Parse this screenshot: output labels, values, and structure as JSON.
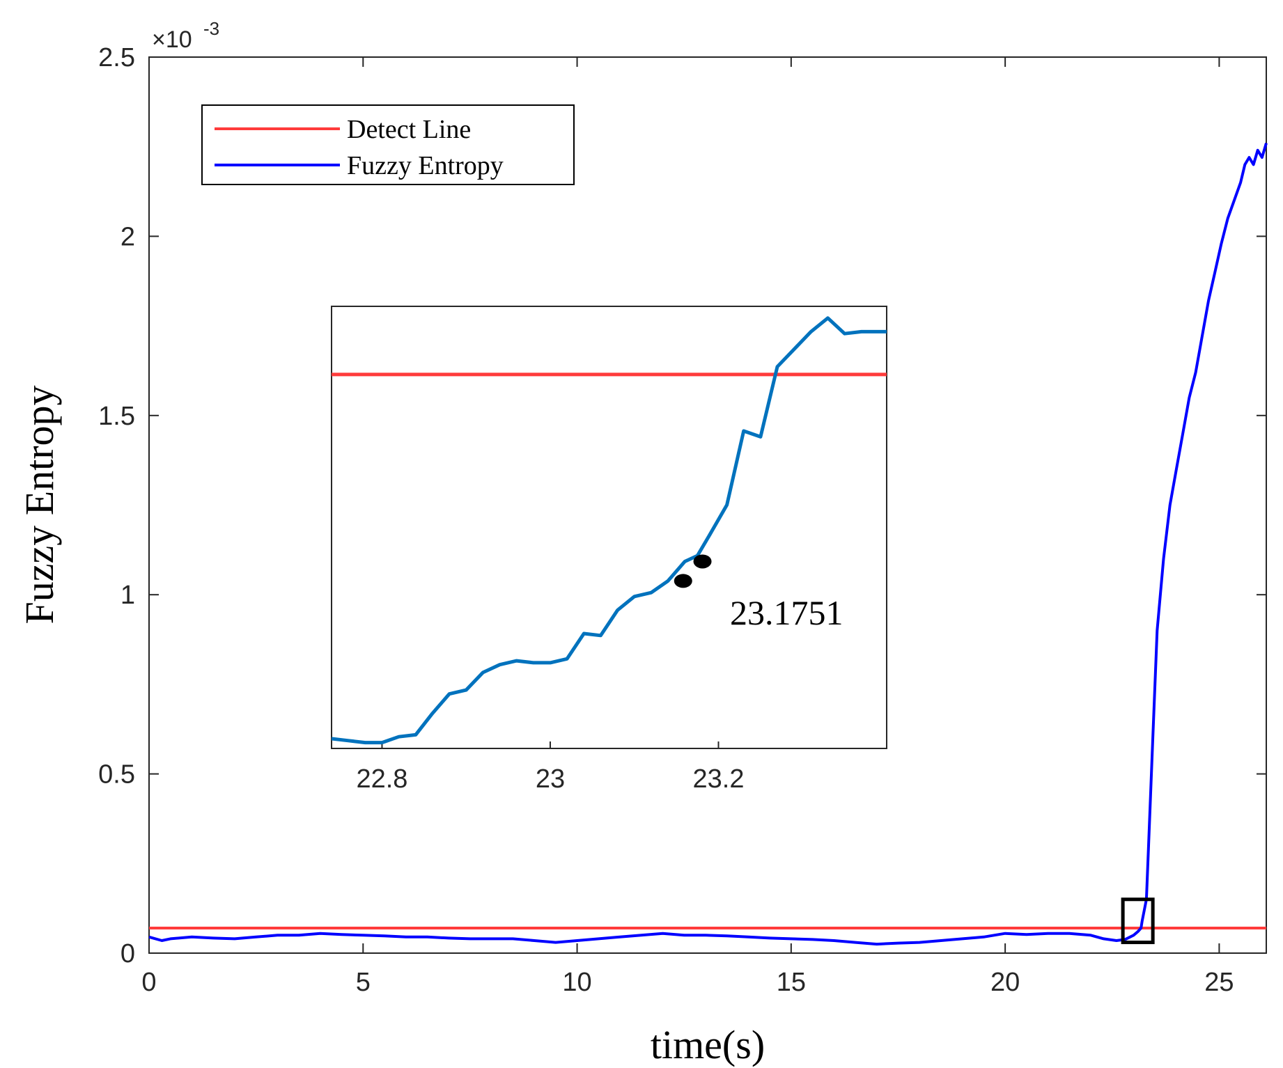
{
  "chart_data": [
    {
      "type": "line",
      "xlabel": "time(s)",
      "ylabel": "Fuzzy Entropy",
      "y_multiplier": "×10",
      "y_multiplier_exponent": "-3",
      "xlim": [
        0,
        26.1
      ],
      "ylim": [
        0,
        2.5
      ],
      "xticks": [
        0,
        5,
        10,
        15,
        20,
        25
      ],
      "xtick_labels": [
        "0",
        "5",
        "10",
        "15",
        "20",
        "25"
      ],
      "yticks": [
        0,
        0.5,
        1,
        1.5,
        2,
        2.5
      ],
      "ytick_labels": [
        "0",
        "0.5",
        "1",
        "1.5",
        "2",
        "2.5"
      ],
      "grid": false,
      "legend_position": "top-left",
      "series": [
        {
          "name": "Detect Line",
          "color": "#ff3b3b",
          "x": [
            0,
            26.1
          ],
          "y": [
            0.07,
            0.07
          ]
        },
        {
          "name": "Fuzzy Entropy",
          "color": "#0000ff",
          "x": [
            0,
            0.3,
            0.5,
            1,
            1.5,
            2,
            2.5,
            3,
            3.5,
            4,
            4.5,
            5,
            5.5,
            6,
            6.5,
            7,
            7.5,
            8,
            8.5,
            9,
            9.5,
            10,
            10.5,
            11,
            11.5,
            12,
            12.5,
            13,
            13.5,
            14,
            14.5,
            15,
            15.5,
            16,
            16.5,
            17,
            17.5,
            18,
            18.5,
            19,
            19.5,
            20,
            20.5,
            21,
            21.5,
            22,
            22.3,
            22.6,
            22.8,
            23.0,
            23.1,
            23.175,
            23.2,
            23.3,
            23.35,
            23.45,
            23.55,
            23.7,
            23.85,
            24.0,
            24.15,
            24.3,
            24.45,
            24.6,
            24.75,
            24.9,
            25.05,
            25.2,
            25.35,
            25.5,
            25.6,
            25.7,
            25.8,
            25.9,
            26.0,
            26.1
          ],
          "y": [
            0.045,
            0.035,
            0.04,
            0.045,
            0.042,
            0.04,
            0.045,
            0.05,
            0.05,
            0.055,
            0.052,
            0.05,
            0.048,
            0.045,
            0.045,
            0.042,
            0.04,
            0.04,
            0.04,
            0.035,
            0.03,
            0.035,
            0.04,
            0.045,
            0.05,
            0.055,
            0.05,
            0.05,
            0.048,
            0.045,
            0.042,
            0.04,
            0.038,
            0.035,
            0.03,
            0.025,
            0.028,
            0.03,
            0.035,
            0.04,
            0.045,
            0.055,
            0.052,
            0.055,
            0.055,
            0.05,
            0.04,
            0.035,
            0.038,
            0.05,
            0.06,
            0.07,
            0.09,
            0.15,
            0.3,
            0.6,
            0.9,
            1.1,
            1.25,
            1.35,
            1.45,
            1.55,
            1.62,
            1.72,
            1.82,
            1.9,
            1.98,
            2.05,
            2.1,
            2.15,
            2.2,
            2.22,
            2.2,
            2.24,
            2.22,
            2.26
          ]
        }
      ],
      "zoom_box": {
        "x": [
          22.75,
          23.45
        ],
        "y": [
          0.03,
          0.15
        ]
      }
    },
    {
      "type": "line",
      "xlim": [
        22.74,
        23.4
      ],
      "xticks": [
        22.8,
        23,
        23.2
      ],
      "xtick_labels": [
        "22.8",
        "23",
        "23.2"
      ],
      "yticks": [],
      "grid": false,
      "series": [
        {
          "name": "Detect Line",
          "color": "#ff3b3b",
          "x": [
            22.74,
            23.4
          ],
          "y": [
            0.07,
            0.07
          ]
        },
        {
          "name": "Fuzzy Entropy",
          "color": "#0072bd",
          "x": [
            22.74,
            22.76,
            22.78,
            22.8,
            22.82,
            22.84,
            22.86,
            22.88,
            22.9,
            22.92,
            22.94,
            22.96,
            22.98,
            23.0,
            23.02,
            23.04,
            23.06,
            23.08,
            23.1,
            23.12,
            23.14,
            23.16,
            23.175,
            23.19,
            23.21,
            23.23,
            23.25,
            23.27,
            23.29,
            23.31,
            23.33,
            23.35,
            23.37,
            23.39,
            23.4
          ],
          "y": [
            0.0513,
            0.0512,
            0.0511,
            0.0511,
            0.0514,
            0.0515,
            0.0526,
            0.0536,
            0.0538,
            0.0547,
            0.0551,
            0.0553,
            0.0552,
            0.0552,
            0.0554,
            0.0567,
            0.0566,
            0.0579,
            0.0586,
            0.0588,
            0.0594,
            0.0604,
            0.0607,
            0.0618,
            0.0633,
            0.0671,
            0.0668,
            0.0704,
            0.0713,
            0.0722,
            0.0729,
            0.0721,
            0.0722,
            0.0722,
            0.0722
          ]
        }
      ],
      "markers": [
        {
          "x": 23.158,
          "y": 0.0594
        },
        {
          "x": 23.181,
          "y": 0.0604
        }
      ],
      "annotation": "23.1751"
    }
  ],
  "colors": {
    "detect_line": "#ff3b3b",
    "main_series": "#0000ff",
    "inset_series": "#0072bd",
    "marker": "#000000",
    "axes": "#262626"
  }
}
